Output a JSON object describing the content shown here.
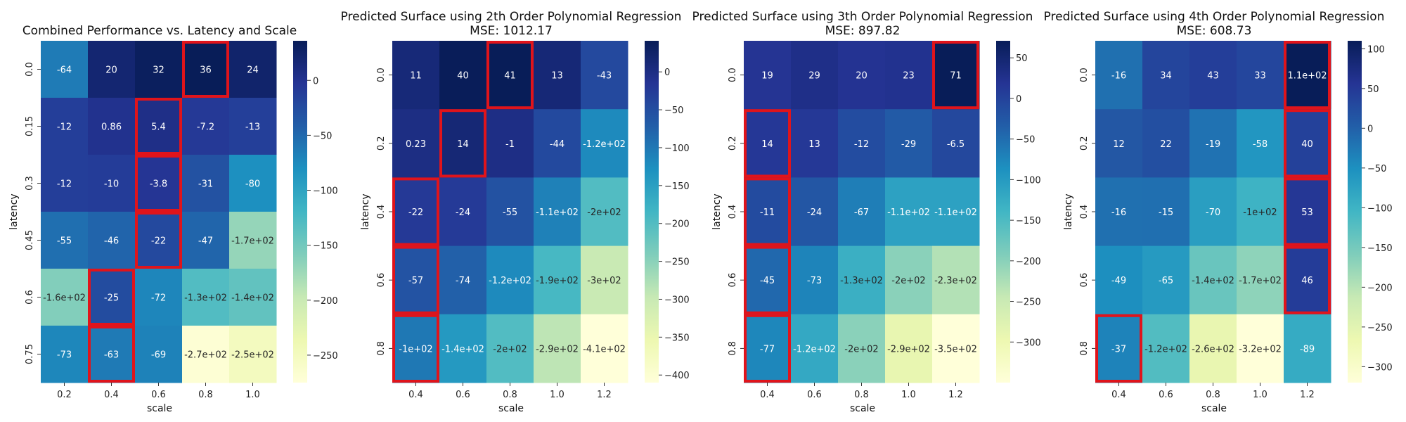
{
  "chart_data": [
    {
      "type": "heatmap",
      "title": "Combined Performance vs. Latency and Scale",
      "subtitle": "",
      "xlabel": "scale",
      "ylabel": "latency",
      "x_categories": [
        "0.2",
        "0.4",
        "0.6",
        "0.8",
        "1.0"
      ],
      "y_categories": [
        "0.0",
        "0.15",
        "0.3",
        "0.45",
        "0.6",
        "0.75"
      ],
      "values": [
        [
          -64,
          20,
          32,
          36,
          24
        ],
        [
          -12,
          0.86,
          5.4,
          -7.2,
          -13
        ],
        [
          -12,
          -10,
          -3.8,
          -31,
          -80
        ],
        [
          -55,
          -46,
          -22,
          -47,
          -170
        ],
        [
          -160,
          -25,
          -72,
          -130,
          -140
        ],
        [
          -73,
          -63,
          -69,
          -270,
          -250
        ]
      ],
      "labels": [
        [
          "-64",
          "20",
          "32",
          "36",
          "24"
        ],
        [
          "-12",
          "0.86",
          "5.4",
          "-7.2",
          "-13"
        ],
        [
          "-12",
          "-10",
          "-3.8",
          "-31",
          "-80"
        ],
        [
          "-55",
          "-46",
          "-22",
          "-47",
          "-1.7e+02"
        ],
        [
          "-1.6e+02",
          "-25",
          "-72",
          "-1.3e+02",
          "-1.4e+02"
        ],
        [
          "-73",
          "-63",
          "-69",
          "-2.7e+02",
          "-2.5e+02"
        ]
      ],
      "highlighted": [
        [
          0,
          3
        ],
        [
          1,
          2
        ],
        [
          2,
          2
        ],
        [
          3,
          2
        ],
        [
          4,
          1
        ],
        [
          5,
          1
        ]
      ],
      "vmin": -275,
      "vmax": 36,
      "colorbar_ticks": [
        0,
        -50,
        -100,
        -150,
        -200,
        -250
      ],
      "colormap": "YlGnBu"
    },
    {
      "type": "heatmap",
      "title": "Predicted Surface using 2th Order Polynomial Regression",
      "subtitle": "MSE: 1012.17",
      "xlabel": "scale",
      "ylabel": "latency",
      "x_categories": [
        "0.4",
        "0.6",
        "0.8",
        "1.0",
        "1.2"
      ],
      "y_categories": [
        "0.0",
        "0.2",
        "0.4",
        "0.6",
        "0.8"
      ],
      "values": [
        [
          11,
          40,
          41,
          13,
          -43
        ],
        [
          0.23,
          14,
          -1,
          -44,
          -120
        ],
        [
          -22,
          -24,
          -55,
          -110,
          -200
        ],
        [
          -57,
          -74,
          -120,
          -190,
          -300
        ],
        [
          -100,
          -140,
          -200,
          -290,
          -410
        ]
      ],
      "labels": [
        [
          "11",
          "40",
          "41",
          "13",
          "-43"
        ],
        [
          "0.23",
          "14",
          "-1",
          "-44",
          "-1.2e+02"
        ],
        [
          "-22",
          "-24",
          "-55",
          "-1.1e+02",
          "-2e+02"
        ],
        [
          "-57",
          "-74",
          "-1.2e+02",
          "-1.9e+02",
          "-3e+02"
        ],
        [
          "-1e+02",
          "-1.4e+02",
          "-2e+02",
          "-2.9e+02",
          "-4.1e+02"
        ]
      ],
      "highlighted": [
        [
          0,
          2
        ],
        [
          1,
          1
        ],
        [
          2,
          0
        ],
        [
          3,
          0
        ],
        [
          4,
          0
        ]
      ],
      "vmin": -410,
      "vmax": 41,
      "colorbar_ticks": [
        0,
        -50,
        -100,
        -150,
        -200,
        -250,
        -300,
        -350,
        -400
      ],
      "colormap": "YlGnBu"
    },
    {
      "type": "heatmap",
      "title": "Predicted Surface using 3th Order Polynomial Regression",
      "subtitle": "MSE: 897.82",
      "xlabel": "scale",
      "ylabel": "latency",
      "x_categories": [
        "0.4",
        "0.6",
        "0.8",
        "1.0",
        "1.2"
      ],
      "y_categories": [
        "0.0",
        "0.2",
        "0.4",
        "0.6",
        "0.8"
      ],
      "values": [
        [
          19,
          29,
          20,
          23,
          71
        ],
        [
          14,
          13,
          -12,
          -29,
          -6.5
        ],
        [
          -11,
          -24,
          -67,
          -110,
          -110
        ],
        [
          -45,
          -73,
          -130,
          -200,
          -230
        ],
        [
          -77,
          -120,
          -200,
          -290,
          -350
        ]
      ],
      "labels": [
        [
          "19",
          "29",
          "20",
          "23",
          "71"
        ],
        [
          "14",
          "13",
          "-12",
          "-29",
          "-6.5"
        ],
        [
          "-11",
          "-24",
          "-67",
          "-1.1e+02",
          "-1.1e+02"
        ],
        [
          "-45",
          "-73",
          "-1.3e+02",
          "-2e+02",
          "-2.3e+02"
        ],
        [
          "-77",
          "-1.2e+02",
          "-2e+02",
          "-2.9e+02",
          "-3.5e+02"
        ]
      ],
      "highlighted": [
        [
          0,
          4
        ],
        [
          1,
          0
        ],
        [
          2,
          0
        ],
        [
          3,
          0
        ],
        [
          4,
          0
        ]
      ],
      "vmin": -350,
      "vmax": 71,
      "colorbar_ticks": [
        50,
        0,
        -50,
        -100,
        -150,
        -200,
        -250,
        -300
      ],
      "colormap": "YlGnBu"
    },
    {
      "type": "heatmap",
      "title": "Predicted Surface using 4th Order Polynomial Regression",
      "subtitle": "MSE: 608.73",
      "xlabel": "scale",
      "ylabel": "latency",
      "x_categories": [
        "0.4",
        "0.6",
        "0.8",
        "1.0",
        "1.2"
      ],
      "y_categories": [
        "0.0",
        "0.2",
        "0.4",
        "0.6",
        "0.8"
      ],
      "values": [
        [
          -16,
          34,
          43,
          33,
          110
        ],
        [
          12,
          22,
          -19,
          -58,
          40
        ],
        [
          -16,
          -15,
          -70,
          -100,
          53
        ],
        [
          -49,
          -65,
          -140,
          -170,
          46
        ],
        [
          -37,
          -120,
          -260,
          -320,
          -89
        ]
      ],
      "labels": [
        [
          "-16",
          "34",
          "43",
          "33",
          "1.1e+02"
        ],
        [
          "12",
          "22",
          "-19",
          "-58",
          "40"
        ],
        [
          "-16",
          "-15",
          "-70",
          "-1e+02",
          "53"
        ],
        [
          "-49",
          "-65",
          "-1.4e+02",
          "-1.7e+02",
          "46"
        ],
        [
          "-37",
          "-1.2e+02",
          "-2.6e+02",
          "-3.2e+02",
          "-89"
        ]
      ],
      "highlighted": [
        [
          0,
          4
        ],
        [
          1,
          4
        ],
        [
          2,
          4
        ],
        [
          3,
          4
        ],
        [
          4,
          0
        ]
      ],
      "vmin": -320,
      "vmax": 110,
      "colorbar_ticks": [
        100,
        50,
        0,
        -50,
        -100,
        -150,
        -200,
        -250,
        -300
      ],
      "colormap": "YlGnBu"
    }
  ]
}
